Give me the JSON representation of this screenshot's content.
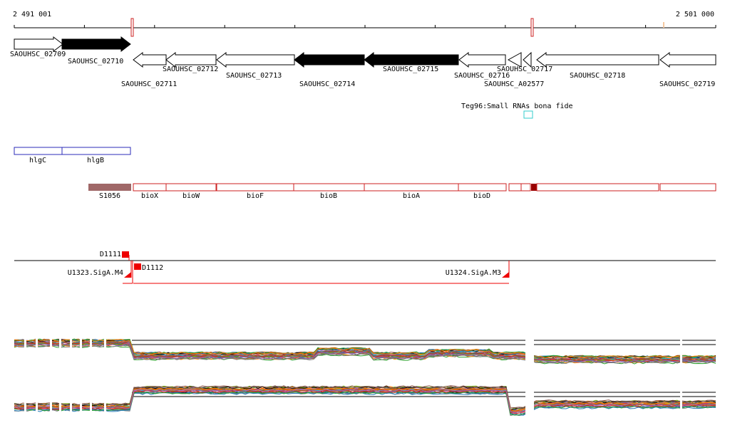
{
  "coordinates": {
    "start": "2 491 001",
    "end": "2 501 000"
  },
  "genes": [
    {
      "label": "SAOUHSC_02709",
      "dir": "right",
      "filled": false
    },
    {
      "label": "SAOUHSC_02710",
      "dir": "right",
      "filled": true
    },
    {
      "label": "SAOUHSC_02711",
      "dir": "left",
      "filled": false
    },
    {
      "label": "SAOUHSC_02712",
      "dir": "left",
      "filled": false
    },
    {
      "label": "SAOUHSC_02713",
      "dir": "left",
      "filled": false
    },
    {
      "label": "SAOUHSC_02714",
      "dir": "left",
      "filled": true
    },
    {
      "label": "SAOUHSC_02715",
      "dir": "left",
      "filled": true
    },
    {
      "label": "SAOUHSC_02716",
      "dir": "left",
      "filled": false
    },
    {
      "label": "SAOUHSC_02717",
      "dir": "left",
      "filled": false
    },
    {
      "label": "SAOUHSC_A02577",
      "dir": "left",
      "filled": false
    },
    {
      "label": "SAOUHSC_02718",
      "dir": "left",
      "filled": false
    },
    {
      "label": "SAOUHSC_02719",
      "dir": "left",
      "filled": false
    }
  ],
  "small_rna": {
    "label": "Teg96:Small RNAs bona fide"
  },
  "hlg_features": [
    {
      "label": "hlgC"
    },
    {
      "label": "hlgB"
    }
  ],
  "operon": {
    "tu_label": "S1056",
    "genes": [
      {
        "label": "bioX"
      },
      {
        "label": "bioW"
      },
      {
        "label": "bioF"
      },
      {
        "label": "bioB"
      },
      {
        "label": "bioA"
      },
      {
        "label": "bioD"
      }
    ]
  },
  "regulatory": {
    "labels": [
      {
        "label": "D1111"
      },
      {
        "label": "D1112"
      },
      {
        "label": "U1323.SigA.M4"
      },
      {
        "label": "U1324.SigA.M3"
      }
    ]
  },
  "colors": {
    "gene_filled": "#000000",
    "feature_box": "#2b2bb8",
    "operon_box": "#cc2222",
    "tu_fill": "#a06868",
    "reg_mark": "#ee0000",
    "srna_box": "#33cccc"
  }
}
